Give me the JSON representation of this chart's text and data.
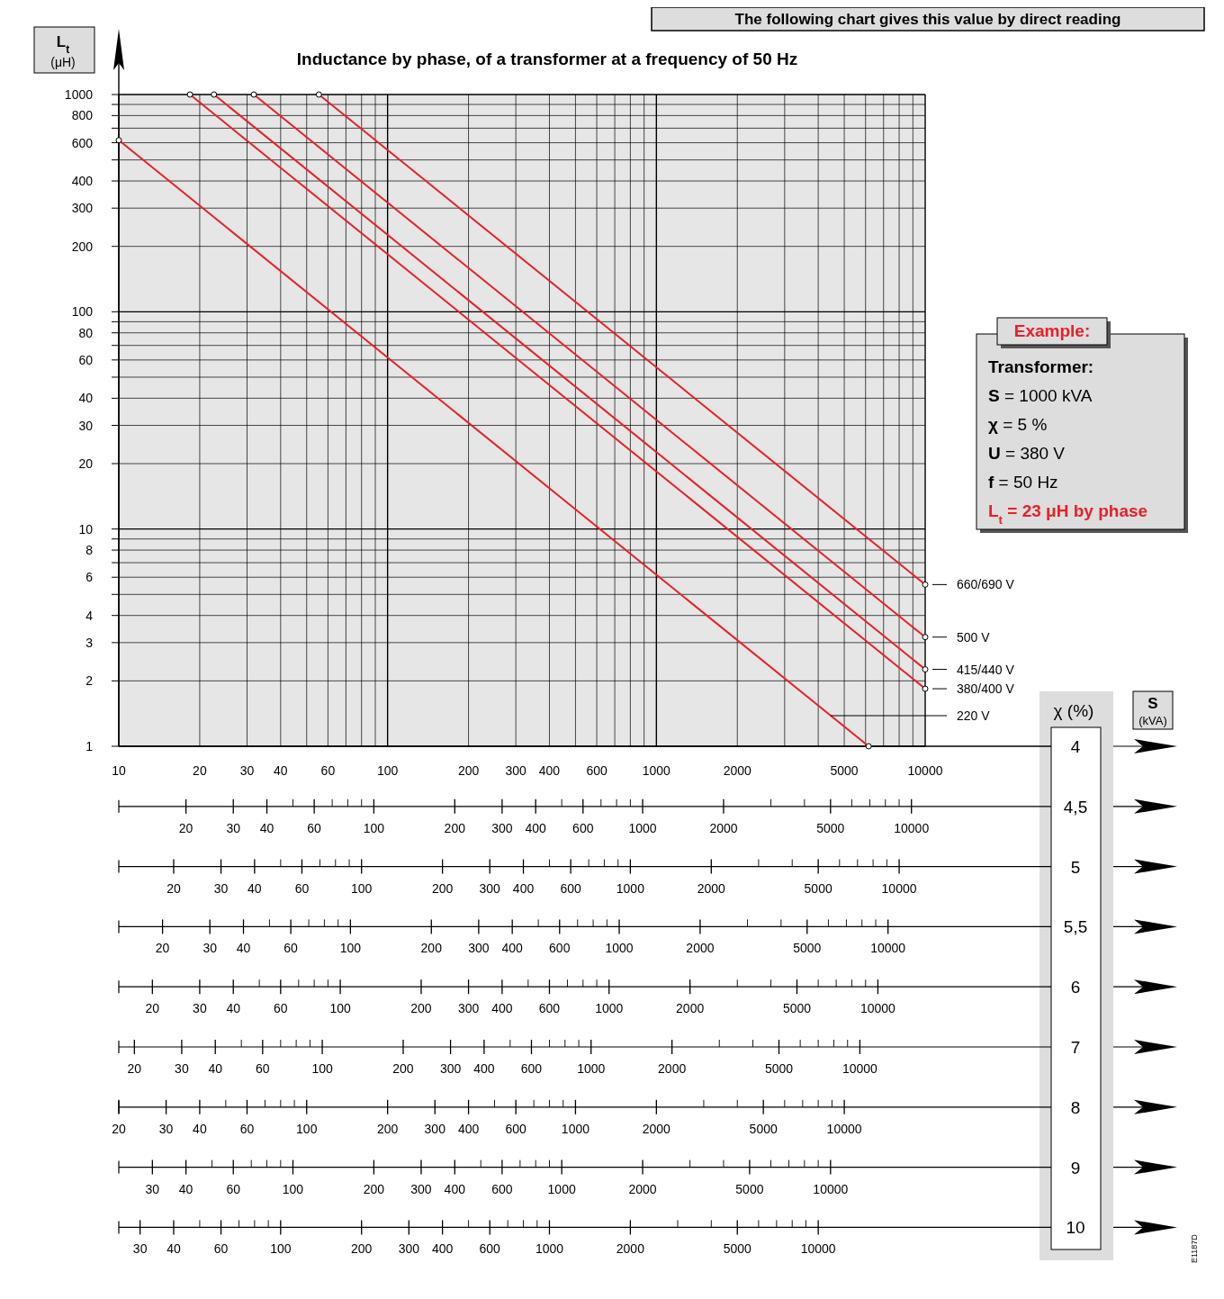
{
  "chart_data": [
    {
      "type": "line",
      "title": "Inductance by phase, of a transformer at a frequency of 50 Hz",
      "ylabel": "L$_{t}$ (μH)",
      "log": "xy",
      "grid": true,
      "legend": "right",
      "marker": "circle",
      "line_style": "solid",
      "xlim": [
        10,
        10000
      ],
      "ylim": [
        1,
        1000
      ],
      "xticks": [
        10,
        20,
        30,
        40,
        {
          "value": 50,
          "label": null
        },
        60,
        {
          "value": 70,
          "label": null
        },
        {
          "value": 80,
          "label": null
        },
        {
          "value": 90,
          "label": null
        },
        100,
        200,
        300,
        400,
        {
          "value": 500,
          "label": null
        },
        600,
        {
          "value": 700,
          "label": null
        },
        {
          "value": 800,
          "label": null
        },
        {
          "value": 900,
          "label": null
        },
        1000,
        2000,
        {
          "value": 3000,
          "label": null
        },
        {
          "value": 4000,
          "label": null
        },
        5000,
        {
          "value": 6000,
          "label": null
        },
        {
          "value": 7000,
          "label": null
        },
        {
          "value": 8000,
          "label": null
        },
        {
          "value": 9000,
          "label": null
        },
        10000
      ],
      "yticks": [
        1,
        2,
        3,
        4,
        {
          "value": 5,
          "label": null
        },
        6,
        {
          "value": 7,
          "label": null
        },
        8,
        {
          "value": 9,
          "label": null
        },
        10,
        20,
        30,
        40,
        {
          "value": 50,
          "label": null
        },
        60,
        {
          "value": 70,
          "label": null
        },
        80,
        {
          "value": 90,
          "label": null
        },
        100,
        200,
        300,
        400,
        {
          "value": 500,
          "label": null
        },
        600,
        {
          "value": 700,
          "label": null
        },
        800,
        {
          "value": 900,
          "label": null
        },
        1000
      ],
      "series": [
        {
          "name": "660/690 V",
          "color": "#e8202a",
          "x": [
            55.5,
            10000
          ],
          "values": [
            1000,
            5.55
          ]
        },
        {
          "name": "500 V",
          "color": "#e8202a",
          "x": [
            31.8,
            10000
          ],
          "values": [
            1000,
            3.18
          ]
        },
        {
          "name": "415/440 V",
          "color": "#e8202a",
          "x": [
            22.6,
            10000
          ],
          "values": [
            1000,
            2.26
          ]
        },
        {
          "name": "380/400 V",
          "color": "#e8202a",
          "x": [
            18.4,
            10000
          ],
          "values": [
            1000,
            1.84
          ]
        },
        {
          "name": "220 V",
          "color": "#e8202a",
          "x": [
            10,
            6160
          ],
          "values": [
            616,
            1
          ]
        }
      ],
      "annotations": [
        "The following chart gives this value by direct reading",
        "Example:",
        "Transformer:",
        "S = 1000 kVA",
        "χ = 5 %",
        "U = 380 V",
        "f = 50 Hz",
        "L$_{t}$ = 23 μH by phase",
        "χ (%)",
        "4",
        "E1187D",
        "S (kVA)"
      ]
    },
    {
      "type": "other",
      "title": "4,5",
      "annotations": [
        "20",
        "30",
        "40",
        "60",
        "100",
        "200",
        "300",
        "400",
        "600",
        "1000",
        "2000",
        "5000",
        "10000"
      ]
    },
    {
      "type": "other",
      "title": "5",
      "annotations": [
        "20",
        "30",
        "40",
        "60",
        "100",
        "200",
        "300",
        "400",
        "600",
        "1000",
        "2000",
        "5000",
        "10000"
      ]
    },
    {
      "type": "other",
      "title": "5,5",
      "annotations": [
        "20",
        "30",
        "40",
        "60",
        "100",
        "200",
        "300",
        "400",
        "600",
        "1000",
        "2000",
        "5000",
        "10000"
      ]
    },
    {
      "type": "other",
      "title": "6",
      "annotations": [
        "20",
        "30",
        "40",
        "60",
        "100",
        "200",
        "300",
        "400",
        "600",
        "1000",
        "2000",
        "5000",
        "10000"
      ]
    },
    {
      "type": "other",
      "title": "7",
      "annotations": [
        "20",
        "30",
        "40",
        "60",
        "100",
        "200",
        "300",
        "400",
        "600",
        "1000",
        "2000",
        "5000",
        "10000"
      ]
    },
    {
      "type": "other",
      "title": "8",
      "annotations": [
        "20",
        "30",
        "40",
        "60",
        "100",
        "200",
        "300",
        "400",
        "600",
        "1000",
        "2000",
        "5000",
        "10000"
      ]
    },
    {
      "type": "other",
      "title": "9",
      "annotations": [
        "30",
        "40",
        "60",
        "100",
        "200",
        "300",
        "400",
        "600",
        "1000",
        "2000",
        "5000",
        "10000"
      ]
    },
    {
      "type": "other",
      "title": "10",
      "annotations": [
        "30",
        "40",
        "60",
        "100",
        "200",
        "300",
        "400",
        "600",
        "1000",
        "2000",
        "5000",
        "10000"
      ]
    }
  ]
}
